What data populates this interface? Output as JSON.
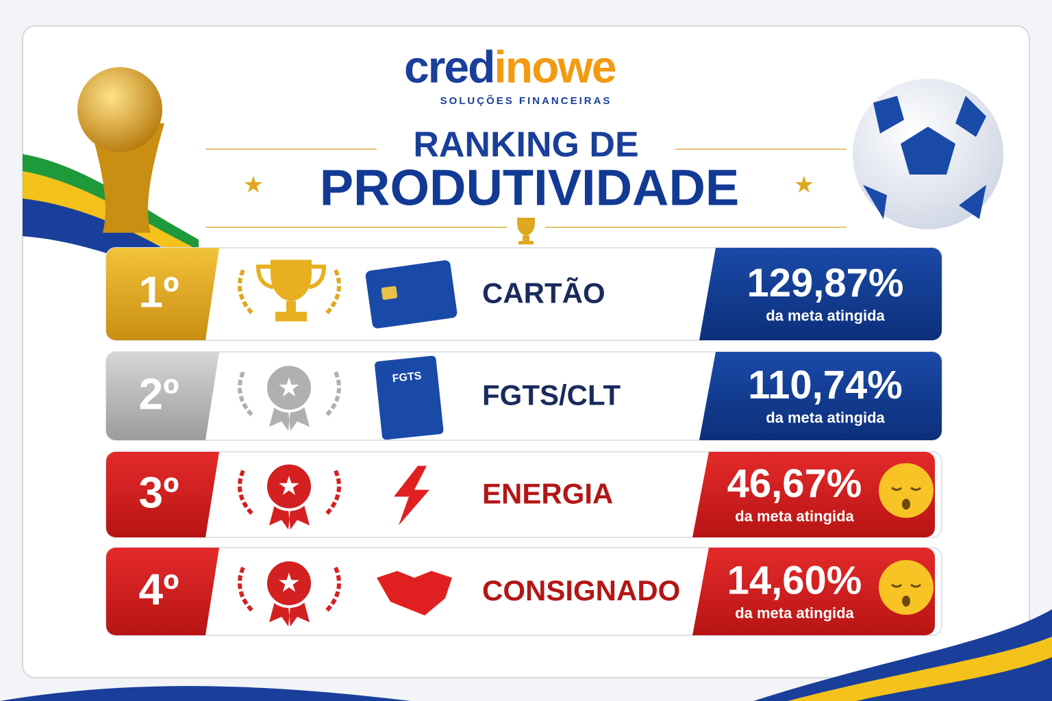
{
  "logo": {
    "part1": "cred",
    "part2": "inowe",
    "tagline": "SOLUÇÕES FINANCEIRAS"
  },
  "title": {
    "line1": "RANKING DE",
    "line2": "PRODUTIVIDADE"
  },
  "rows": [
    {
      "rank": "1º",
      "category": "CARTÃO",
      "value": "129,87%",
      "caption": "da meta atingida"
    },
    {
      "rank": "2º",
      "category": "FGTS/CLT",
      "value": "110,74%",
      "caption": "da meta atingida",
      "icon_label": "FGTS"
    },
    {
      "rank": "3º",
      "category": "ENERGIA",
      "value": "46,67%",
      "caption": "da meta atingida"
    },
    {
      "rank": "4º",
      "category": "CONSIGNADO",
      "value": "14,60%",
      "caption": "da meta atingida"
    }
  ]
}
